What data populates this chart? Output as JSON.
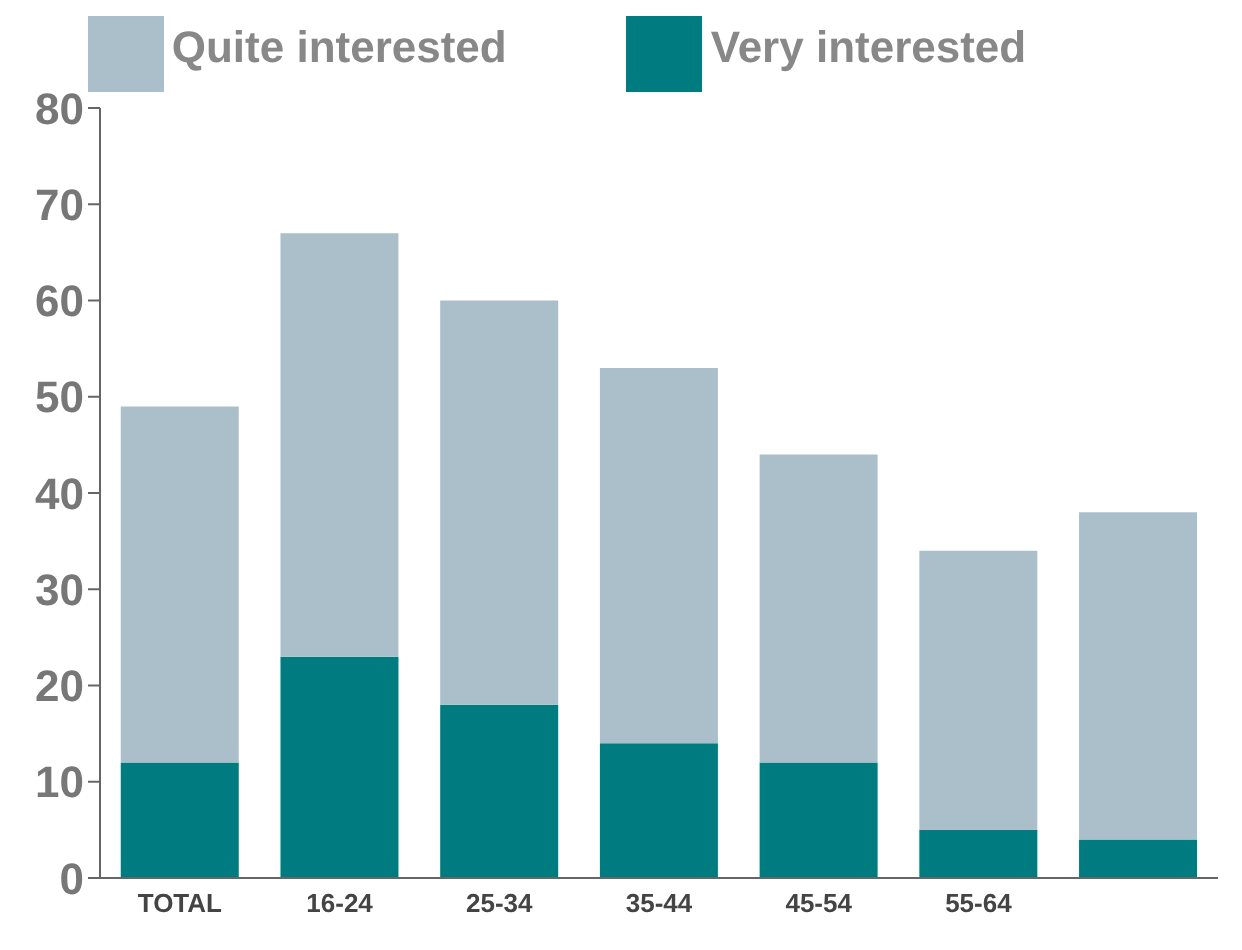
{
  "chart_data": {
    "type": "bar",
    "stacked": true,
    "categories": [
      "TOTAL",
      "16-24",
      "25-34",
      "35-44",
      "45-54",
      "55-64",
      null
    ],
    "series": [
      {
        "name": "Very interested",
        "color": "#007b7f",
        "values": [
          12,
          23,
          18,
          14,
          12,
          5,
          4
        ]
      },
      {
        "name": "Quite interested",
        "color": "#aabfc9",
        "values": [
          37,
          44,
          42,
          39,
          32,
          29,
          34
        ]
      }
    ],
    "ylim": [
      0,
      80
    ],
    "yticks": [
      0,
      10,
      20,
      30,
      40,
      50,
      60,
      70,
      80
    ],
    "grid": false,
    "legend": "top"
  }
}
